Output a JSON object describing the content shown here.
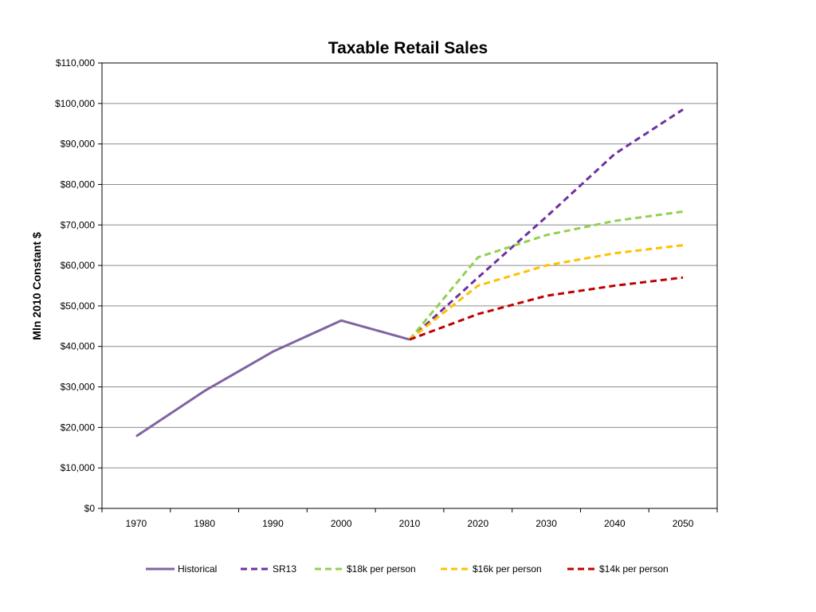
{
  "chart_data": {
    "type": "line",
    "title": "Taxable Retail Sales",
    "xlabel": "",
    "ylabel": "Mln 2010 Constant $",
    "x": [
      1970,
      1980,
      1990,
      2000,
      2010,
      2020,
      2030,
      2040,
      2050
    ],
    "x_tick_labels": [
      "1970",
      "1980",
      "1990",
      "2000",
      "2010",
      "2020",
      "2030",
      "2040",
      "2050"
    ],
    "ylim": [
      0,
      110000
    ],
    "y_tick_values": [
      0,
      10000,
      20000,
      30000,
      40000,
      50000,
      60000,
      70000,
      80000,
      90000,
      100000,
      110000
    ],
    "y_tick_labels": [
      "$0",
      "$10,000",
      "$20,000",
      "$30,000",
      "$40,000",
      "$50,000",
      "$60,000",
      "$70,000",
      "$80,000",
      "$90,000",
      "$100,000",
      "$110,000"
    ],
    "grid": true,
    "legend_position": "bottom",
    "series": [
      {
        "name": "Historical",
        "color": "#8064A2",
        "style": "solid",
        "x": [
          1970,
          1980,
          1990,
          2000,
          2010
        ],
        "values": [
          17800,
          29000,
          38700,
          46400,
          41700
        ]
      },
      {
        "name": "SR13",
        "color": "#7030A0",
        "style": "dashed",
        "x": [
          2010,
          2020,
          2030,
          2040,
          2050
        ],
        "values": [
          41700,
          57000,
          72000,
          87500,
          98500
        ]
      },
      {
        "name": "$18k per person",
        "color": "#92D050",
        "style": "dashed",
        "x": [
          2010,
          2020,
          2030,
          2040,
          2050
        ],
        "values": [
          41700,
          62000,
          67500,
          71000,
          73300
        ]
      },
      {
        "name": "$16k per person",
        "color": "#FFC000",
        "style": "dashed",
        "x": [
          2010,
          2020,
          2030,
          2040,
          2050
        ],
        "values": [
          41700,
          55000,
          60000,
          63000,
          65000
        ]
      },
      {
        "name": "$14k per person",
        "color": "#C00000",
        "style": "dashed",
        "x": [
          2010,
          2020,
          2030,
          2040,
          2050
        ],
        "values": [
          41700,
          48000,
          52500,
          55000,
          57000
        ]
      }
    ]
  }
}
